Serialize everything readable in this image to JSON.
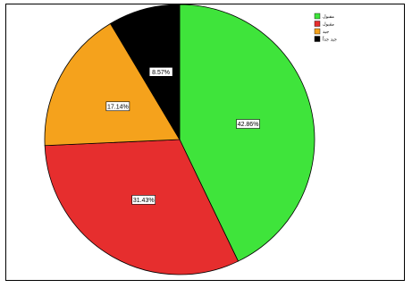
{
  "chart_data": {
    "type": "pie",
    "start_angle_deg": 90,
    "direction": "clockwise",
    "slices": [
      {
        "label": "مقبول",
        "value": 42.86,
        "display": "42.86%",
        "color": "#3fe43b"
      },
      {
        "label": "مقبول",
        "value": 31.43,
        "display": "31.43%",
        "color": "#e62e2e"
      },
      {
        "label": "جيد",
        "value": 17.14,
        "display": "17.14%",
        "color": "#f5a21c"
      },
      {
        "label": "جيد جداً",
        "value": 8.57,
        "display": "8.57%",
        "color": "#000000"
      }
    ],
    "legend_position": "top-right"
  }
}
